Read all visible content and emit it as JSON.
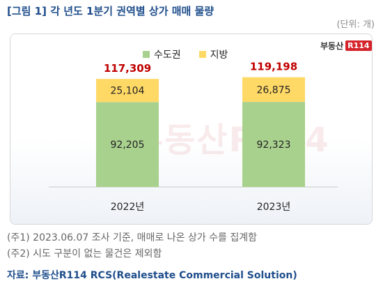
{
  "title": "[그림 1] 각 년도 1분기 권역별 상가 매매 물량",
  "unit": "(단위: 개)",
  "logo": {
    "text": "부동산",
    "mark": "R114"
  },
  "watermark": "부동산R114",
  "notes": [
    "(주1) 2023.06.07 조사 기준, 매매로 나온 상가 수를 집계함",
    "(주2) 시도 구분이 없는 물건은 제외함"
  ],
  "source": "자료: 부동산R114 RCS(Realestate Commercial Solution)",
  "colors": {
    "capital": "#a9d18e",
    "regional": "#ffd966",
    "total": "#c00000"
  },
  "chart_data": {
    "type": "bar",
    "stacked": true,
    "categories": [
      "2022년",
      "2023년"
    ],
    "series": [
      {
        "name": "수도권",
        "values": [
          92205,
          92323
        ],
        "labels": [
          "92,205",
          "92,323"
        ]
      },
      {
        "name": "지방",
        "values": [
          25104,
          26875
        ],
        "labels": [
          "25,104",
          "26,875"
        ]
      }
    ],
    "totals": [
      117309,
      119198
    ],
    "total_labels": [
      "117,309",
      "119,198"
    ],
    "legend": "top",
    "grid": false,
    "ylim": [
      0,
      150000
    ]
  }
}
